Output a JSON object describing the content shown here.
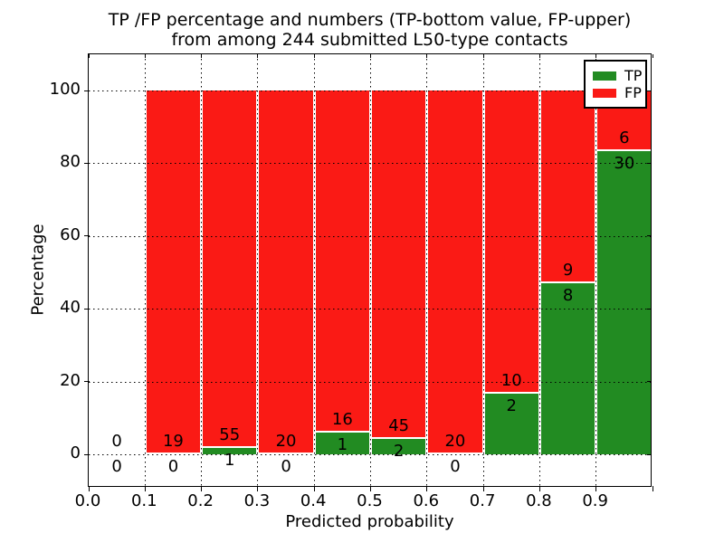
{
  "chart_data": {
    "type": "bar",
    "stacked": true,
    "title_line1": "TP /FP percentage and numbers (TP-bottom value, FP-upper)",
    "title_line2": "from among 244 submitted L50-type contacts",
    "xlabel": "Predicted probability",
    "ylabel": "Percentage",
    "x_tick_labels": [
      "0.0",
      "0.1",
      "0.2",
      "0.3",
      "0.4",
      "0.5",
      "0.6",
      "0.7",
      "0.8",
      "0.9"
    ],
    "x_ticks": [
      0.0,
      0.1,
      0.2,
      0.3,
      0.4,
      0.5,
      0.6,
      0.7,
      0.8,
      0.9,
      1.0
    ],
    "y_ticks": [
      0,
      20,
      40,
      60,
      80,
      100
    ],
    "xlim": [
      0.0,
      1.0
    ],
    "ylim": [
      -9,
      110
    ],
    "grid": true,
    "bar_value_unit": "percent of bin total (TP+FP)",
    "bins": [
      {
        "range": [
          0.0,
          0.1
        ],
        "tp": 0,
        "fp": 0
      },
      {
        "range": [
          0.1,
          0.2
        ],
        "tp": 0,
        "fp": 19
      },
      {
        "range": [
          0.2,
          0.3
        ],
        "tp": 1,
        "fp": 55
      },
      {
        "range": [
          0.3,
          0.4
        ],
        "tp": 0,
        "fp": 20
      },
      {
        "range": [
          0.4,
          0.5
        ],
        "tp": 1,
        "fp": 16
      },
      {
        "range": [
          0.5,
          0.6
        ],
        "tp": 2,
        "fp": 45
      },
      {
        "range": [
          0.6,
          0.7
        ],
        "tp": 0,
        "fp": 20
      },
      {
        "range": [
          0.7,
          0.8
        ],
        "tp": 2,
        "fp": 10
      },
      {
        "range": [
          0.8,
          0.9
        ],
        "tp": 8,
        "fp": 9
      },
      {
        "range": [
          0.9,
          1.0
        ],
        "tp": 30,
        "fp": 6
      }
    ],
    "colors": {
      "tp": "#228b22",
      "fp": "#fa1a15"
    },
    "legend": {
      "position": "upper right",
      "entries": [
        {
          "label": "TP",
          "color_key": "tp"
        },
        {
          "label": "FP",
          "color_key": "fp"
        }
      ]
    }
  }
}
